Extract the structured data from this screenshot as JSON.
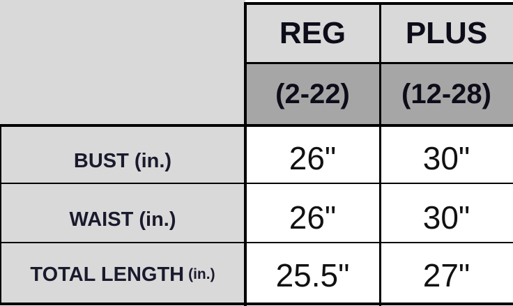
{
  "table": {
    "columns": [
      {
        "label": "REG",
        "range": "(2-22)"
      },
      {
        "label": "PLUS",
        "range": "(12-28)"
      }
    ],
    "rows": [
      {
        "label": "BUST",
        "unit": "(in.)",
        "values": [
          "26\"",
          "30\""
        ]
      },
      {
        "label": "WAIST",
        "unit": "(in.)",
        "values": [
          "26\"",
          "30\""
        ]
      },
      {
        "label": "TOTAL LENGTH",
        "unit": "(in.)",
        "values": [
          "25.5\"",
          "27\""
        ]
      }
    ]
  },
  "colors": {
    "header_bg": "#d9d9d9",
    "range_bg": "#a6a6a6",
    "label_bg": "#d9d9d9",
    "value_bg": "#ffffff",
    "border": "#000000"
  }
}
